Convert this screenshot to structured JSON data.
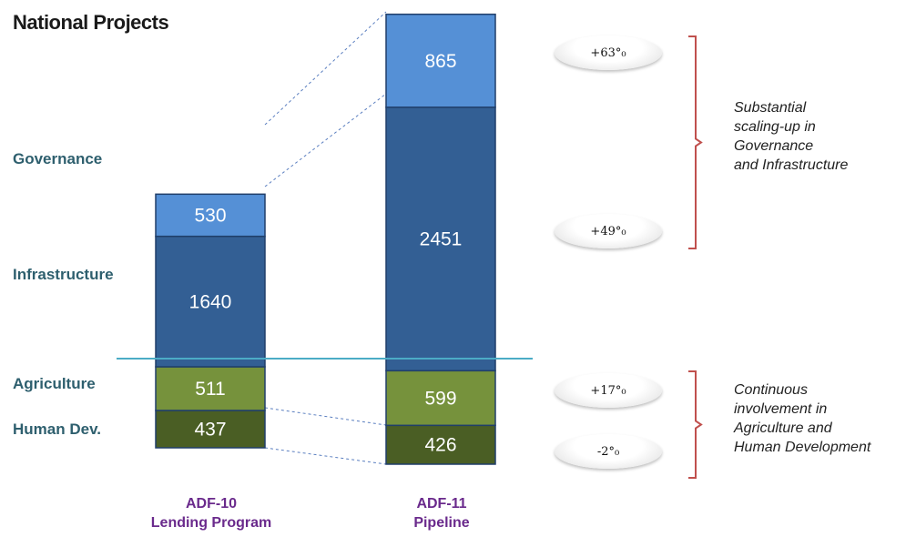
{
  "title": "National Projects",
  "chart_data": {
    "type": "bar",
    "stacked": true,
    "categories": [
      "ADF-10\nLending Program",
      "ADF-11\nPipeline"
    ],
    "series": [
      {
        "name": "Human Dev.",
        "values": [
          437,
          426
        ],
        "color": "#4a5e24"
      },
      {
        "name": "Agriculture",
        "values": [
          511,
          599
        ],
        "color": "#76923c"
      },
      {
        "name": "Infrastructure",
        "values": [
          1640,
          2451
        ],
        "color": "#335f94"
      },
      {
        "name": "Governance",
        "values": [
          530,
          865
        ],
        "color": "#5590d6"
      }
    ],
    "changes": [
      "+63%",
      "+49%",
      "+17%",
      "-2%"
    ],
    "annotations": [
      "Substantial scaling-up in Governance and Infrastructure",
      "Continuous involvement in Agriculture and Human Development"
    ]
  },
  "x_labels": [
    {
      "line1": "ADF-10",
      "line2": "Lending Program"
    },
    {
      "line1": "ADF-11",
      "line2": "Pipeline"
    }
  ],
  "row_labels": {
    "governance": "Governance",
    "infrastructure": "Infrastructure",
    "agriculture": "Agriculture",
    "human_dev": "Human Dev."
  },
  "badges": {
    "governance": "+63°₀",
    "infrastructure": "+49°₀",
    "agriculture": "+17°₀",
    "human_dev": "-2°₀"
  },
  "notes": {
    "top": [
      "Substantial",
      "scaling-up in",
      "Governance",
      "and Infrastructure"
    ],
    "bottom": [
      "Continuous",
      "involvement in",
      "Agriculture and",
      "Human Development"
    ]
  },
  "colors": {
    "bracket": "#c0504d",
    "separator": "#4bacc6",
    "connector": "#5b7fc0"
  }
}
